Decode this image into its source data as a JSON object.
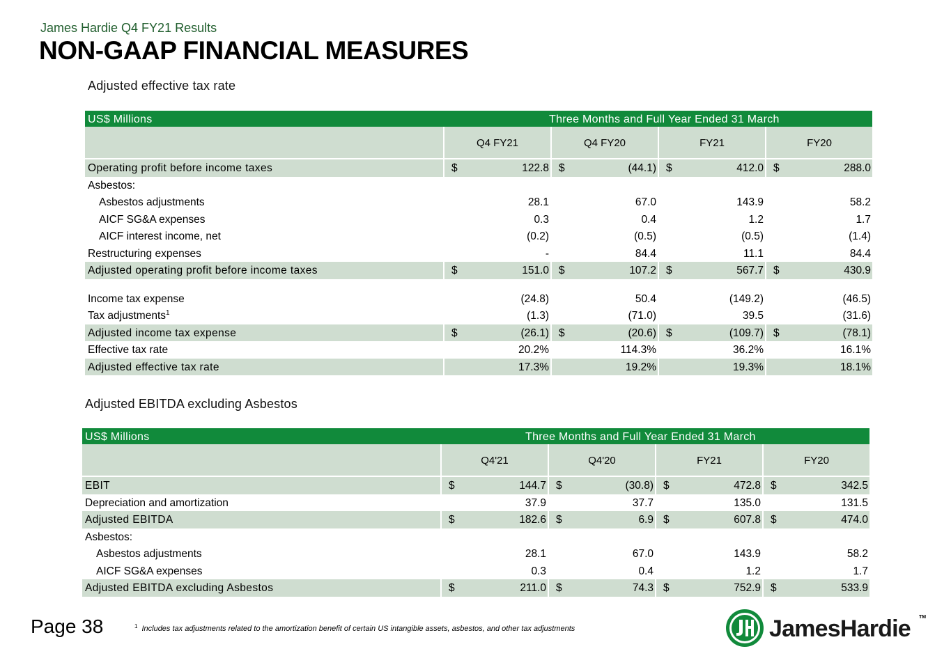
{
  "header": {
    "subtitle": "James Hardie Q4 FY21 Results",
    "title": "NON-GAAP FINANCIAL MEASURES"
  },
  "table1": {
    "section_title": "Adjusted effective tax rate",
    "units": "US$ Millions",
    "period": "Three Months and Full Year Ended 31 March",
    "columns": [
      "Q4 FY21",
      "Q4 FY20",
      "FY21",
      "FY20"
    ],
    "rows": [
      {
        "label": "Operating profit before income taxes",
        "values": [
          "122.8",
          "(44.1)",
          "412.0",
          "288.0"
        ],
        "currency": "$",
        "shaded": true
      },
      {
        "label": "Asbestos:",
        "values": [
          "",
          "",
          "",
          ""
        ]
      },
      {
        "label": "Asbestos adjustments",
        "values": [
          "28.1",
          "67.0",
          "143.9",
          "58.2"
        ],
        "indent": true
      },
      {
        "label": "AICF SG&A expenses",
        "values": [
          "0.3",
          "0.4",
          "1.2",
          "1.7"
        ],
        "indent": true
      },
      {
        "label": "AICF interest income, net",
        "values": [
          "(0.2)",
          "(0.5)",
          "(0.5)",
          "(1.4)"
        ],
        "indent": true
      },
      {
        "label": "Restructuring expenses",
        "values": [
          "-",
          "84.4",
          "11.1",
          "84.4"
        ]
      },
      {
        "label": "Adjusted operating profit before income taxes",
        "values": [
          "151.0",
          "107.2",
          "567.7",
          "430.9"
        ],
        "currency": "$",
        "shaded": true
      },
      {
        "gap": true
      },
      {
        "label": "Income tax expense",
        "values": [
          "(24.8)",
          "50.4",
          "(149.2)",
          "(46.5)"
        ]
      },
      {
        "label": "Tax adjustments",
        "sup": "1",
        "values": [
          "(1.3)",
          "(71.0)",
          "39.5",
          "(31.6)"
        ]
      },
      {
        "label": "Adjusted income tax expense",
        "values": [
          "(26.1)",
          "(20.6)",
          "(109.7)",
          "(78.1)"
        ],
        "currency": "$",
        "shaded": true
      },
      {
        "label": "Effective tax rate",
        "values": [
          "20.2%",
          "114.3%",
          "36.2%",
          "16.1%"
        ]
      },
      {
        "label": "Adjusted effective tax rate",
        "values": [
          "17.3%",
          "19.2%",
          "19.3%",
          "18.1%"
        ],
        "shaded": true
      }
    ]
  },
  "table2": {
    "section_title": "Adjusted EBITDA excluding Asbestos",
    "units": "US$ Millions",
    "period": "Three Months and Full Year Ended 31 March",
    "columns": [
      "Q4'21",
      "Q4'20",
      "FY21",
      "FY20"
    ],
    "rows": [
      {
        "label": "EBIT",
        "values": [
          "144.7",
          "(30.8)",
          "472.8",
          "342.5"
        ],
        "currency": "$",
        "shaded": true
      },
      {
        "label": "Depreciation and amortization",
        "values": [
          "37.9",
          "37.7",
          "135.0",
          "131.5"
        ]
      },
      {
        "label": "Adjusted EBITDA",
        "values": [
          "182.6",
          "6.9",
          "607.8",
          "474.0"
        ],
        "currency": "$",
        "shaded": true
      },
      {
        "label": "Asbestos:",
        "values": [
          "",
          "",
          "",
          ""
        ]
      },
      {
        "label": "Asbestos adjustments",
        "values": [
          "28.1",
          "67.0",
          "143.9",
          "58.2"
        ],
        "indent": true
      },
      {
        "label": "AICF SG&A expenses",
        "values": [
          "0.3",
          "0.4",
          "1.2",
          "1.7"
        ],
        "indent": true
      },
      {
        "label": "Adjusted EBITDA excluding Asbestos",
        "values": [
          "211.0",
          "74.3",
          "752.9",
          "533.9"
        ],
        "currency": "$",
        "shaded": true
      }
    ]
  },
  "footer": {
    "page_number": "Page 38",
    "footnote_marker": "1",
    "footnote": "Includes tax adjustments related to the amortization benefit of certain US intangible assets, asbestos, and other tax adjustments",
    "logo_text": "JamesHardie",
    "logo_tm": "TM"
  },
  "colors": {
    "header_green": "#118a3b",
    "row_shade": "#cfddd0",
    "logo_green": "#118a3b"
  },
  "icons": [
    "james-hardie-logo-icon"
  ]
}
